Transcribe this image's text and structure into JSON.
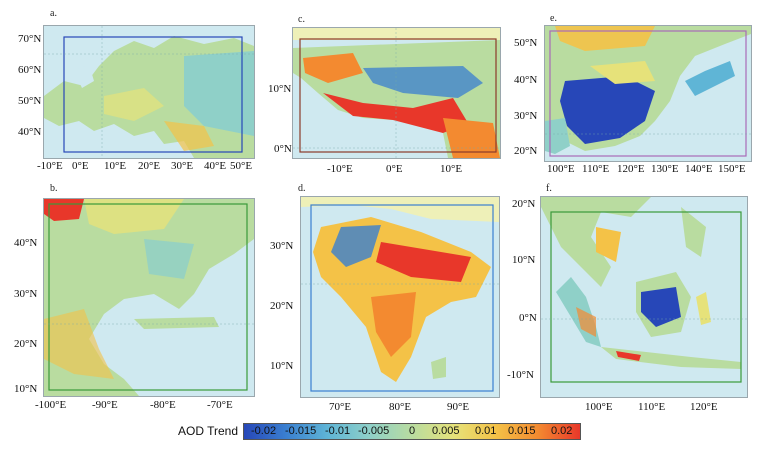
{
  "panels": [
    {
      "id": "a",
      "label": "a.",
      "lat_ticks": [
        "70°N",
        "60°N",
        "50°N",
        "40°N"
      ],
      "lon_ticks": [
        "-10°E",
        "0°E",
        "10°E",
        "20°E",
        "30°E",
        "40°E",
        "50°E"
      ]
    },
    {
      "id": "b",
      "label": "b.",
      "lat_ticks": [
        "40°N",
        "30°N",
        "20°N",
        "10°N"
      ],
      "lon_ticks": [
        "-100°E",
        "-90°E",
        "-80°E",
        "-70°E"
      ]
    },
    {
      "id": "c",
      "label": "c.",
      "lat_ticks": [
        "10°N",
        "0°N"
      ],
      "lon_ticks": [
        "-10°E",
        "0°E",
        "10°E"
      ]
    },
    {
      "id": "d",
      "label": "d.",
      "lat_ticks": [
        "30°N",
        "20°N",
        "10°N"
      ],
      "lon_ticks": [
        "70°E",
        "80°E",
        "90°E"
      ]
    },
    {
      "id": "e",
      "label": "e.",
      "lat_ticks": [
        "50°N",
        "40°N",
        "30°N",
        "20°N"
      ],
      "lon_ticks": [
        "100°E",
        "110°E",
        "120°E",
        "130°E",
        "140°E",
        "150°E"
      ]
    },
    {
      "id": "f",
      "label": "f.",
      "lat_ticks": [
        "20°N",
        "10°N",
        "0°N",
        "-10°N"
      ],
      "lon_ticks": [
        "100°E",
        "110°E",
        "120°E"
      ]
    }
  ],
  "legend": {
    "title": "AOD Trend",
    "labels": [
      "-0.02",
      "-0.015",
      "-0.01",
      "-0.005",
      "0",
      "0.005",
      "0.01",
      "0.015",
      "0.02"
    ],
    "colors": [
      "#2747b8",
      "#3a7fd0",
      "#5fb5d6",
      "#8fd0c8",
      "#b9dca0",
      "#e6e27a",
      "#f4c247",
      "#f38a30",
      "#e8372a"
    ]
  },
  "colors": {
    "ocean": "#cfe9f0",
    "land_neutral": "#b9dca0",
    "frame": "#9aa7ad"
  }
}
